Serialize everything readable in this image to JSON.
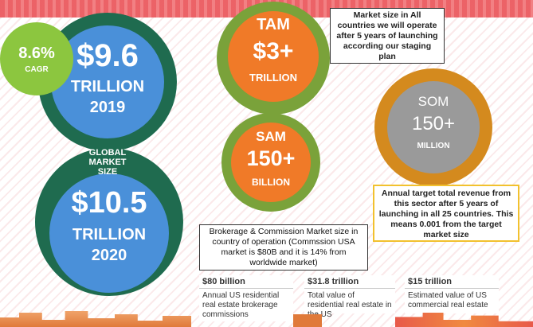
{
  "cagr": {
    "value": "8.6%",
    "label": "CAGR"
  },
  "global_2019": {
    "value": "$9.6",
    "unit": "TRILLION",
    "year": "2019"
  },
  "global_label": "GLOBAL\nMARKET\nSIZE",
  "global_label_lines": [
    "GLOBAL",
    "MARKET",
    "SIZE"
  ],
  "global_2020": {
    "value": "$10.5",
    "unit": "TRILLION",
    "year": "2020"
  },
  "tam": {
    "label": "TAM",
    "value": "$3+",
    "unit": "TRILLION"
  },
  "sam": {
    "label": "SAM",
    "value": "150+",
    "unit": "BILLION"
  },
  "som": {
    "label": "SOM",
    "value": "150+",
    "unit": "MILLION"
  },
  "tam_note": "Market size in All countries we will operate after 5 years of launching according our staging plan",
  "som_note": "Annual target  total revenue from this sector after 5 years of launching in all 25 countries. This means 0.001 from the target market size",
  "sam_note": "Brokerage & Commission Market size in country of operation (Commssion USA market is $80B and it is 14% from worldwide market)",
  "stats": [
    {
      "value": "$80 billion",
      "desc": "Annual US residential real estate brokerage commissions"
    },
    {
      "value": "$31.8 trillion",
      "desc": "Total value of residential real estate in the US"
    },
    {
      "value": "$15 trillion",
      "desc": "Estimated value of US commercial real estate"
    }
  ],
  "colors": {
    "dark_green": "#1f6b4f",
    "light_green": "#8cc63f",
    "blue": "#4a90d9",
    "olive": "#7aa23a",
    "orange": "#f07a28",
    "gold": "#d48a1e",
    "som_gray": "#9a9a9a"
  }
}
